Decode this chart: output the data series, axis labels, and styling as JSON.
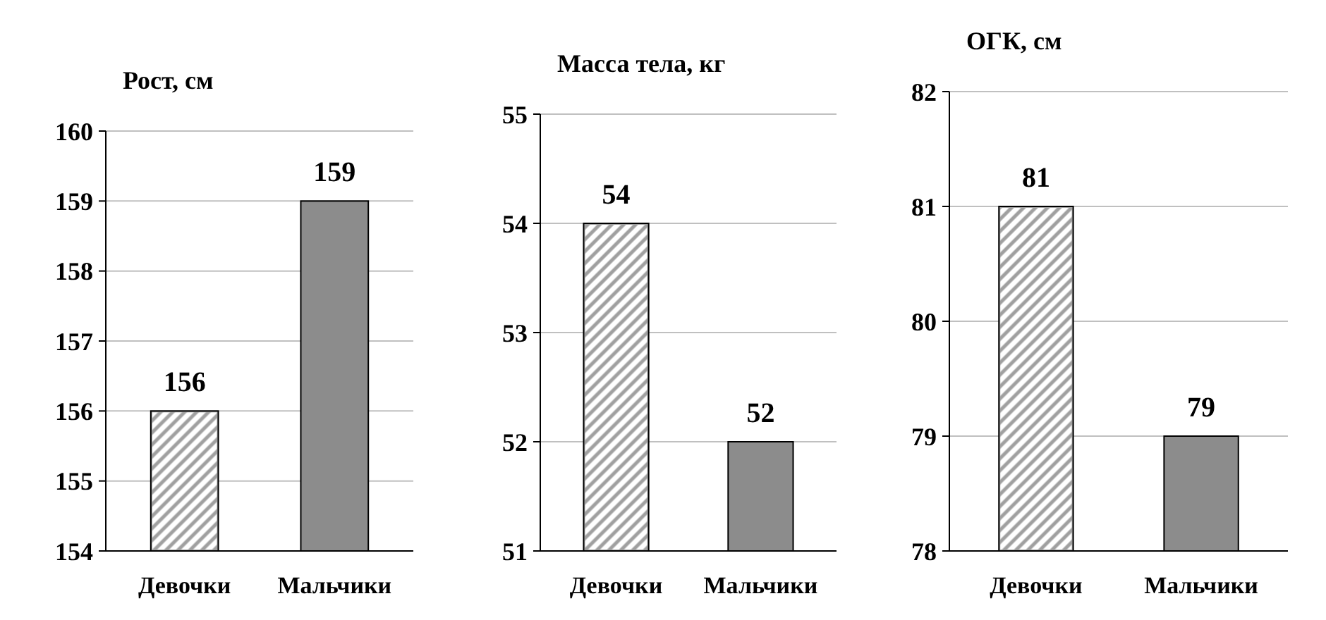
{
  "chart_data": [
    {
      "type": "bar",
      "title": "Рост, см",
      "categories": [
        "Девочки",
        "Мальчики"
      ],
      "values": [
        156,
        159
      ],
      "colors": [
        "#a0a0a0",
        "#8c8c8c"
      ],
      "ylim": [
        154,
        160
      ],
      "yticks": [
        154,
        155,
        156,
        157,
        158,
        159,
        160
      ],
      "grid": "y",
      "data_labels": true
    },
    {
      "type": "bar",
      "title": "Масса тела, кг",
      "categories": [
        "Девочки",
        "Мальчики"
      ],
      "values": [
        54,
        52
      ],
      "colors": [
        "#a0a0a0",
        "#8c8c8c"
      ],
      "ylim": [
        51,
        55
      ],
      "yticks": [
        51,
        52,
        53,
        54,
        55
      ],
      "grid": "y",
      "data_labels": true
    },
    {
      "type": "bar",
      "title": "ОГК, см",
      "categories": [
        "Девочки",
        "Мальчики"
      ],
      "values": [
        81,
        79
      ],
      "colors": [
        "#a0a0a0",
        "#8c8c8c"
      ],
      "ylim": [
        78,
        82
      ],
      "yticks": [
        78,
        79,
        80,
        81,
        82
      ],
      "grid": "y",
      "data_labels": true
    }
  ]
}
